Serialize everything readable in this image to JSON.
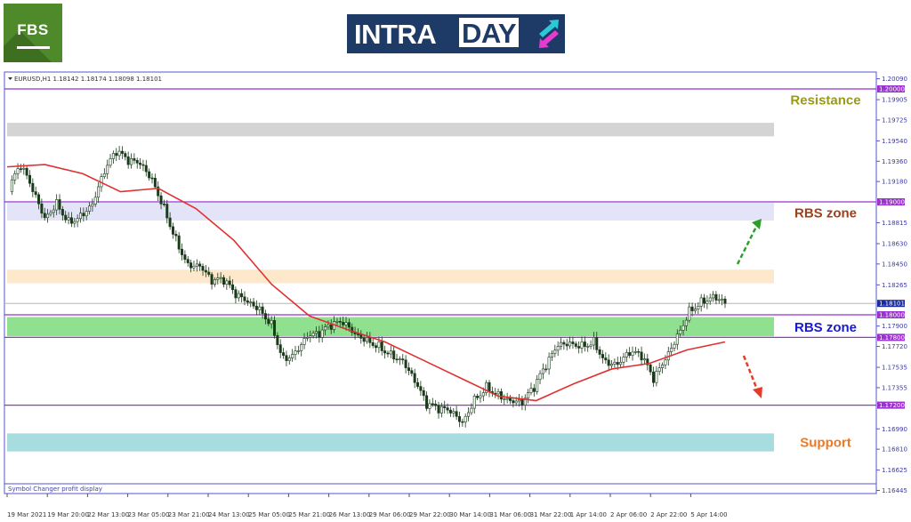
{
  "logos": {
    "fbs": "FBS",
    "intraday_a": "INTRA",
    "intraday_b": "DAY"
  },
  "chart_data": {
    "type": "candlestick",
    "header": "EURUSD,H1  1.18142 1.18174 1.18098 1.18101",
    "footer": "Symbol Changer profit display",
    "ylim": [
      1.16445,
      1.2009
    ],
    "y_ticks": [
      "1.20090",
      "1.19905",
      "1.19725",
      "1.19540",
      "1.19360",
      "1.19180",
      "1.18815",
      "1.18630",
      "1.18450",
      "1.18265",
      "1.17900",
      "1.17720",
      "1.17535",
      "1.17355",
      "1.16990",
      "1.16810",
      "1.16625",
      "1.16445"
    ],
    "x_ticks": [
      "19 Mar 2021",
      "19 Mar 20:00",
      "22 Mar 13:00",
      "23 Mar 05:00",
      "23 Mar 21:00",
      "24 Mar 13:00",
      "25 Mar 05:00",
      "25 Mar 21:00",
      "26 Mar 13:00",
      "29 Mar 06:00",
      "29 Mar 22:00",
      "30 Mar 14:00",
      "31 Mar 06:00",
      "31 Mar 22:00",
      "1 Apr 14:00",
      "2 Apr 06:00",
      "2 Apr 22:00",
      "5 Apr 14:00"
    ],
    "closes": [
      1.1909,
      1.1929,
      1.1909,
      1.1886,
      1.1902,
      1.1886,
      1.189,
      1.1898,
      1.1925,
      1.1941,
      1.1933,
      1.1933,
      1.1921,
      1.1898,
      1.187,
      1.1846,
      1.1843,
      1.1827,
      1.1827,
      1.1815,
      1.1811,
      1.1807,
      1.1795,
      1.1764,
      1.1768,
      1.178,
      1.178,
      1.1787,
      1.1791,
      1.1783,
      1.178,
      1.1776,
      1.1768,
      1.176,
      1.174,
      1.1717,
      1.1713,
      1.1713,
      1.1705,
      1.1728,
      1.174,
      1.1732,
      1.1724,
      1.172,
      1.1732,
      1.1752,
      1.1772,
      1.1776,
      1.1776,
      1.178,
      1.176,
      1.1756,
      1.1764,
      1.176,
      1.174,
      1.176,
      1.1783,
      1.1807,
      1.1815,
      1.1818,
      1.18101
    ],
    "moving_average": [
      1.1931,
      1.1933,
      1.1925,
      1.1909,
      1.1912,
      1.1894,
      1.1866,
      1.1827,
      1.1799,
      1.1787,
      1.1776,
      1.176,
      1.1744,
      1.1728,
      1.1724,
      1.1739,
      1.1752,
      1.1757,
      1.1769,
      1.1776
    ],
    "current_price": "1.18101",
    "levels": [
      "1.20000",
      "1.19000",
      "1.18000",
      "1.17800",
      "1.17200"
    ],
    "zones": [
      {
        "from": 1.1958,
        "to": 1.197,
        "color": "#d4d4d4"
      },
      {
        "from": 1.18835,
        "to": 1.18992,
        "color": "#e4e4f8"
      },
      {
        "from": 1.1828,
        "to": 1.184,
        "color": "#fde8cc"
      },
      {
        "from": 1.1781,
        "to": 1.1798,
        "color": "#8fe08f"
      },
      {
        "from": 1.1679,
        "to": 1.1695,
        "color": "#a8dde0"
      }
    ],
    "annotations": [
      {
        "text": "Resistance",
        "price": 1.199,
        "color": "#9a9a1a"
      },
      {
        "text": "RBS zone",
        "price": 1.189,
        "color": "#a0401a"
      },
      {
        "text": "RBS zone",
        "price": 1.1789,
        "color": "#1a1ad0"
      },
      {
        "text": "Support",
        "price": 1.1687,
        "color": "#f07820"
      }
    ],
    "arrows": [
      {
        "direction": "up",
        "color": "#2aa02a"
      },
      {
        "direction": "down",
        "color": "#e83a2a"
      }
    ],
    "colors": {
      "line": "#9933cc",
      "ma": "#e03030",
      "candle": "#1a3a1a"
    }
  }
}
